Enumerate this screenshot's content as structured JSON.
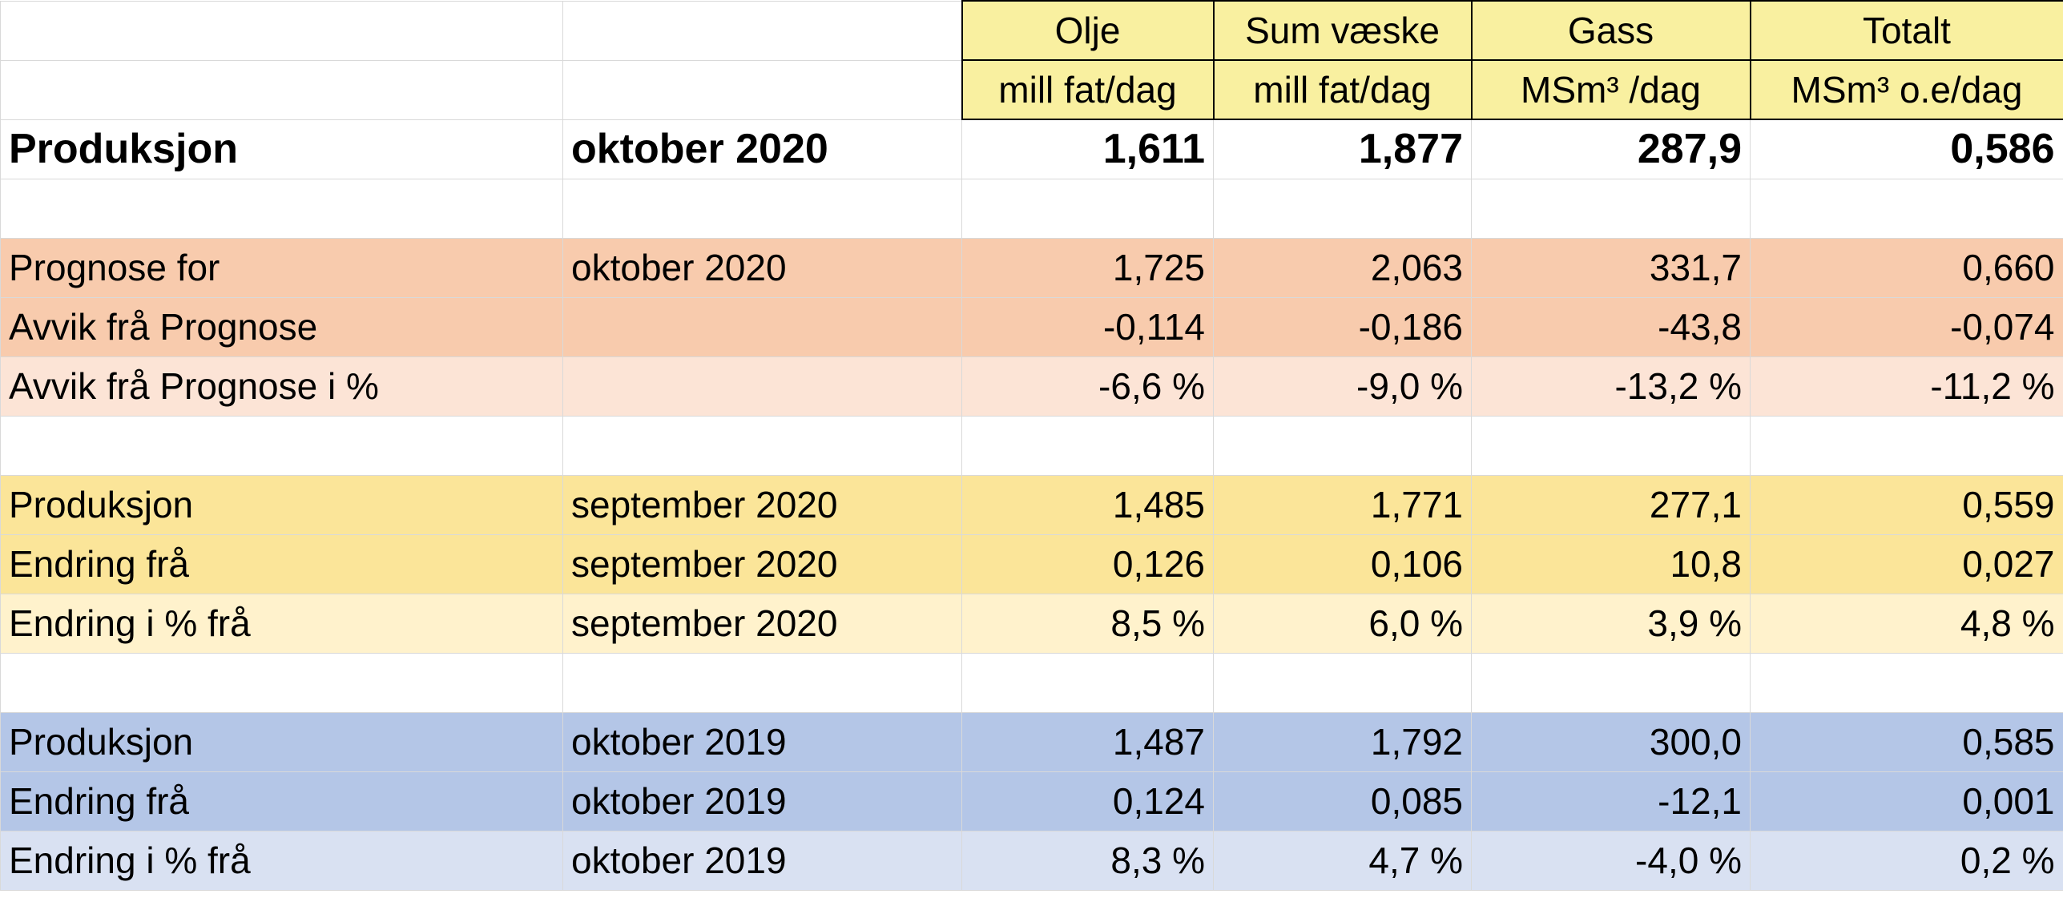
{
  "header": {
    "columns": [
      {
        "name": "Olje",
        "unit": "mill fat/dag"
      },
      {
        "name": "Sum væske",
        "unit": "mill fat/dag"
      },
      {
        "name": "Gass",
        "unit": "MSm³ /dag"
      },
      {
        "name": "Totalt",
        "unit": "MSm³ o.e/dag"
      }
    ]
  },
  "production": {
    "label": "Produksjon",
    "period": "oktober 2020",
    "values": [
      "1,611",
      "1,877",
      "287,9",
      "0,586"
    ]
  },
  "forecast_group": [
    {
      "label": "Prognose for",
      "period": "oktober 2020",
      "values": [
        "1,725",
        "2,063",
        "331,7",
        "0,660"
      ]
    },
    {
      "label": "Avvik frå Prognose",
      "period": "",
      "values": [
        "-0,114",
        "-0,186",
        "-43,8",
        "-0,074"
      ]
    },
    {
      "label": "Avvik frå Prognose i %",
      "period": "",
      "values": [
        "-6,6 %",
        "-9,0 %",
        "-13,2 %",
        "-11,2 %"
      ]
    }
  ],
  "prev_month_group": [
    {
      "label": "Produksjon",
      "period": "september 2020",
      "values": [
        "1,485",
        "1,771",
        "277,1",
        "0,559"
      ]
    },
    {
      "label": "Endring frå",
      "period": "september 2020",
      "values": [
        "0,126",
        "0,106",
        "10,8",
        "0,027"
      ]
    },
    {
      "label": "Endring i % frå",
      "period": "september 2020",
      "values": [
        "8,5 %",
        "6,0 %",
        "3,9 %",
        "4,8 %"
      ]
    }
  ],
  "prev_year_group": [
    {
      "label": "Produksjon",
      "period": "oktober 2019",
      "values": [
        "1,487",
        "1,792",
        "300,0",
        "0,585"
      ]
    },
    {
      "label": "Endring frå",
      "period": "oktober 2019",
      "values": [
        "0,124",
        "0,085",
        "-12,1",
        "0,001"
      ]
    },
    {
      "label": "Endring i % frå",
      "period": "oktober 2019",
      "values": [
        "8,3 %",
        "4,7 %",
        "-4,0 %",
        "0,2 %"
      ]
    }
  ]
}
